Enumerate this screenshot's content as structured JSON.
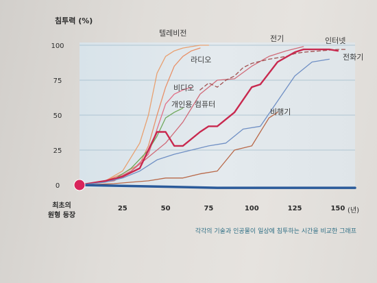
{
  "chart_data": {
    "type": "line",
    "ylabel": "침투력 (%)",
    "xlabel": "",
    "x_unit": "(년)",
    "ylim": [
      0,
      100
    ],
    "xlim": [
      0,
      160
    ],
    "y_ticks": [
      0,
      25,
      50,
      75,
      100
    ],
    "x_ticks": [
      25,
      50,
      75,
      100,
      125,
      150
    ],
    "grid": true,
    "origin_label_line1": "최초의",
    "origin_label_line2": "원형 등장",
    "caption": "각각의 기술과 인공물이 일상에 침투하는 시간을 비교한 그래프",
    "series": [
      {
        "name": "텔레비전",
        "color": "#e8a070",
        "x": [
          0,
          15,
          25,
          30,
          35,
          40,
          45,
          50,
          55,
          60,
          65,
          70,
          75
        ],
        "y": [
          0,
          3,
          10,
          20,
          30,
          50,
          80,
          92,
          96,
          98,
          99,
          100,
          100
        ]
      },
      {
        "name": "라디오",
        "color": "#e89068",
        "x": [
          0,
          15,
          25,
          35,
          40,
          45,
          50,
          55,
          60,
          65,
          70
        ],
        "y": [
          0,
          3,
          8,
          15,
          28,
          50,
          70,
          85,
          92,
          96,
          98
        ]
      },
      {
        "name": "비디오",
        "color": "#e26f86",
        "x": [
          0,
          20,
          30,
          40,
          45,
          50,
          55,
          60,
          65
        ],
        "y": [
          0,
          4,
          10,
          22,
          40,
          58,
          65,
          68,
          70
        ]
      },
      {
        "name": "개인용 컴퓨터",
        "color": "#6fa85c",
        "x": [
          0,
          20,
          30,
          40,
          45,
          50,
          55,
          60
        ],
        "y": [
          0,
          4,
          12,
          25,
          35,
          48,
          52,
          55
        ]
      },
      {
        "name": "전기",
        "color": "#d06a78",
        "x": [
          0,
          20,
          30,
          40,
          50,
          60,
          70,
          80,
          90,
          100,
          110,
          120,
          130
        ],
        "y": [
          0,
          3,
          10,
          20,
          30,
          45,
          65,
          75,
          76,
          85,
          92,
          96,
          99
        ]
      },
      {
        "name": "인터넷",
        "color": "#a05050",
        "dashed": true,
        "x": [
          70,
          75,
          80,
          85,
          90,
          95,
          100,
          110,
          120,
          125,
          130,
          140,
          150,
          155
        ],
        "y": [
          68,
          73,
          70,
          75,
          78,
          84,
          87,
          90,
          92,
          94,
          95,
          96,
          97,
          97
        ]
      },
      {
        "name": "전화기",
        "color": "#c8284e",
        "bold": true,
        "x": [
          0,
          15,
          25,
          35,
          40,
          45,
          50,
          55,
          60,
          70,
          75,
          80,
          90,
          100,
          105,
          115,
          125,
          130,
          140,
          145,
          150
        ],
        "y": [
          0,
          3,
          6,
          12,
          25,
          38,
          38,
          28,
          28,
          38,
          42,
          42,
          52,
          70,
          72,
          88,
          95,
          97,
          97,
          97,
          96
        ]
      },
      {
        "name": "",
        "color": "#6f8fc4",
        "x": [
          0,
          15,
          25,
          35,
          45,
          55,
          65,
          75,
          85,
          95,
          105,
          115,
          125,
          135,
          145
        ],
        "y": [
          0,
          2,
          5,
          10,
          18,
          22,
          25,
          28,
          30,
          40,
          42,
          60,
          78,
          88,
          90
        ]
      },
      {
        "name": "비행기",
        "color": "#b86848",
        "x": [
          0,
          20,
          30,
          40,
          50,
          60,
          70,
          80,
          90,
          100,
          105,
          110,
          115
        ],
        "y": [
          0,
          1,
          2,
          3,
          5,
          5,
          8,
          10,
          25,
          28,
          38,
          48,
          52
        ]
      },
      {
        "name": "",
        "color": "#2a5a9a",
        "base": true,
        "x": [
          0,
          40,
          80,
          120,
          160
        ],
        "y": [
          0,
          -1,
          -2,
          -2,
          -2
        ]
      }
    ]
  }
}
